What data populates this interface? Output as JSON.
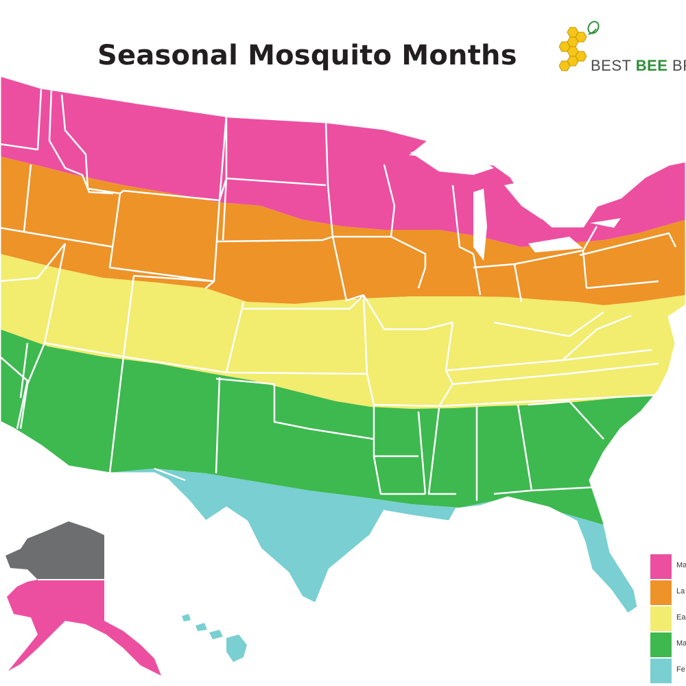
{
  "title": "Seasonal Mosquito Months",
  "brand": {
    "part1": "BEST ",
    "part2": "BEE",
    "part3": " BR"
  },
  "colors": {
    "pink": "#ec4fa0",
    "orange": "#ed9328",
    "yellow": "#f2ec6f",
    "green": "#3db94f",
    "cyan": "#79cfd1",
    "gray": "#6d6e70",
    "border": "#ffffff",
    "honey": "#f5c518"
  },
  "legend": [
    {
      "label": "Ma",
      "color": "#ec4fa0"
    },
    {
      "label": "La",
      "color": "#ed9328"
    },
    {
      "label": "Ea",
      "color": "#f2ec6f"
    },
    {
      "label": "Ma",
      "color": "#3db94f"
    },
    {
      "label": "Fe",
      "color": "#79cfd1"
    }
  ]
}
